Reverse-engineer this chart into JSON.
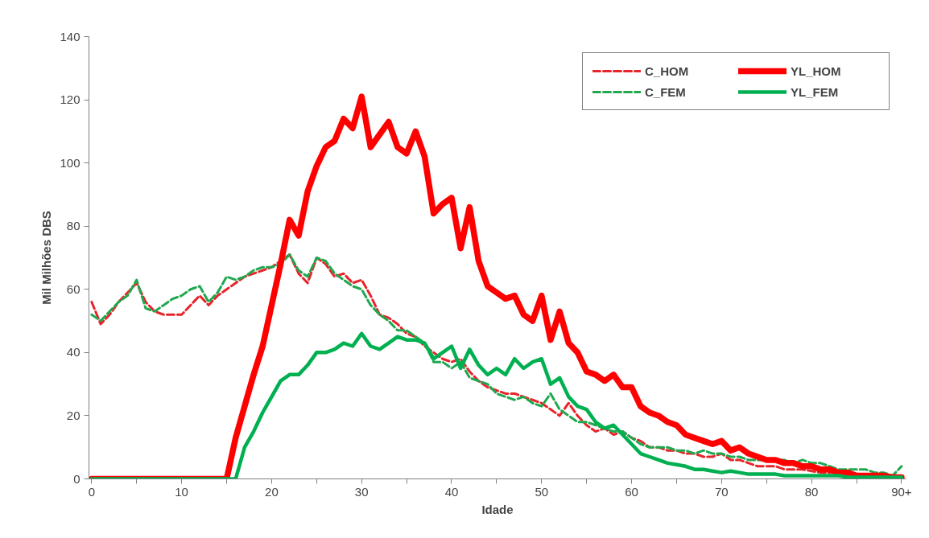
{
  "chart_data": {
    "type": "line",
    "xlabel": "Idade",
    "ylabel": "Mil Milhões DBS",
    "categories": [
      "0",
      null,
      null,
      null,
      null,
      null,
      null,
      null,
      null,
      null,
      "10",
      null,
      null,
      null,
      null,
      null,
      null,
      null,
      null,
      null,
      "20",
      null,
      null,
      null,
      null,
      null,
      null,
      null,
      null,
      null,
      "30",
      null,
      null,
      null,
      null,
      null,
      null,
      null,
      null,
      null,
      "40",
      null,
      null,
      null,
      null,
      null,
      null,
      null,
      null,
      null,
      "50",
      null,
      null,
      null,
      null,
      null,
      null,
      null,
      null,
      null,
      "60",
      null,
      null,
      null,
      null,
      null,
      null,
      null,
      null,
      null,
      "70",
      null,
      null,
      null,
      null,
      null,
      null,
      null,
      null,
      null,
      "80",
      null,
      null,
      null,
      null,
      null,
      null,
      null,
      null,
      null,
      "90+"
    ],
    "ylim": [
      0,
      140
    ],
    "yticks": [
      0,
      20,
      40,
      60,
      80,
      100,
      120,
      140
    ],
    "grid": false,
    "legend": "top right",
    "marker": "none",
    "series": [
      {
        "name": "C_HOM",
        "color": "#e8242b",
        "line_style": "dashed",
        "values": [
          56,
          49,
          52,
          56,
          59,
          62,
          56,
          53,
          52,
          52,
          52,
          55,
          58,
          55,
          58,
          60,
          62,
          64,
          65,
          66,
          67,
          69,
          71,
          65,
          62,
          70,
          68,
          64,
          65,
          62,
          63,
          58,
          52,
          51,
          49,
          46,
          45,
          42,
          40,
          38,
          37,
          38,
          34,
          31,
          29,
          28,
          27,
          27,
          26,
          25,
          24,
          22,
          20,
          24,
          20,
          17,
          15,
          16,
          14,
          15,
          13,
          12,
          10,
          10,
          9,
          9,
          8,
          8,
          7,
          7,
          8,
          6,
          6,
          5,
          4,
          4,
          4,
          3,
          3,
          3,
          2.5,
          2,
          2,
          2,
          1.5,
          1.5,
          1,
          1,
          1,
          0.5,
          0.5
        ]
      },
      {
        "name": "C_FEM",
        "color": "#1fa84f",
        "line_style": "dashed",
        "values": [
          52,
          50,
          53,
          56,
          58,
          63,
          54,
          53,
          55,
          57,
          58,
          60,
          61,
          56,
          59,
          64,
          63,
          64,
          66,
          67,
          67,
          68,
          71,
          66,
          64,
          70,
          69,
          65,
          63,
          61,
          60,
          55,
          52,
          50,
          47,
          47,
          45,
          43,
          37,
          37,
          35,
          37,
          32,
          31,
          30,
          27,
          26,
          25,
          26,
          24,
          23,
          27,
          22,
          20,
          18,
          18,
          17,
          16,
          15,
          15,
          13,
          11,
          10,
          10,
          10,
          9,
          9,
          8,
          9,
          8,
          8,
          7,
          7,
          6,
          6,
          6,
          6,
          6,
          5,
          6,
          5,
          5,
          4,
          3,
          3,
          3,
          3,
          2,
          2,
          1,
          4
        ]
      },
      {
        "name": "YL_HOM",
        "color": "#ff0000",
        "line_style": "solid",
        "values": [
          0,
          0,
          0,
          0,
          0,
          0,
          0,
          0,
          0,
          0,
          0,
          0,
          0,
          0,
          0,
          0,
          13,
          23,
          33,
          42,
          55,
          68,
          82,
          77,
          91,
          99,
          105,
          107,
          114,
          111,
          121,
          105,
          109,
          113,
          105,
          103,
          110,
          102,
          84,
          87,
          89,
          73,
          86,
          69,
          61,
          59,
          57,
          58,
          52,
          50,
          58,
          44,
          53,
          43,
          40,
          34,
          33,
          31,
          33,
          29,
          29,
          23,
          21,
          20,
          18,
          17,
          14,
          13,
          12,
          11,
          12,
          9,
          10,
          8,
          7,
          6,
          6,
          5,
          5,
          4,
          4,
          3,
          3,
          2,
          2,
          1,
          1,
          1,
          1,
          0.5,
          0.5
        ]
      },
      {
        "name": "YL_FEM",
        "color": "#00b050",
        "line_style": "solid",
        "values": [
          0,
          0,
          0,
          0,
          0,
          0,
          0,
          0,
          0,
          0,
          0,
          0,
          0,
          0,
          0,
          0,
          0,
          10,
          15,
          21,
          26,
          31,
          33,
          33,
          36,
          40,
          40,
          41,
          43,
          42,
          46,
          42,
          41,
          43,
          45,
          44,
          44,
          43,
          38,
          40,
          42,
          35,
          41,
          36,
          33,
          35,
          33,
          38,
          35,
          37,
          38,
          30,
          32,
          26,
          23,
          22,
          18,
          16,
          17,
          14,
          11,
          8,
          7,
          6,
          5,
          4.5,
          4,
          3,
          3,
          2.5,
          2,
          2.5,
          2,
          1.5,
          1.5,
          1.5,
          1.5,
          1,
          1,
          1,
          1,
          1,
          1,
          1,
          0.5,
          0.5,
          0.5,
          0.5,
          0.5,
          0.5,
          0.5
        ]
      }
    ]
  }
}
